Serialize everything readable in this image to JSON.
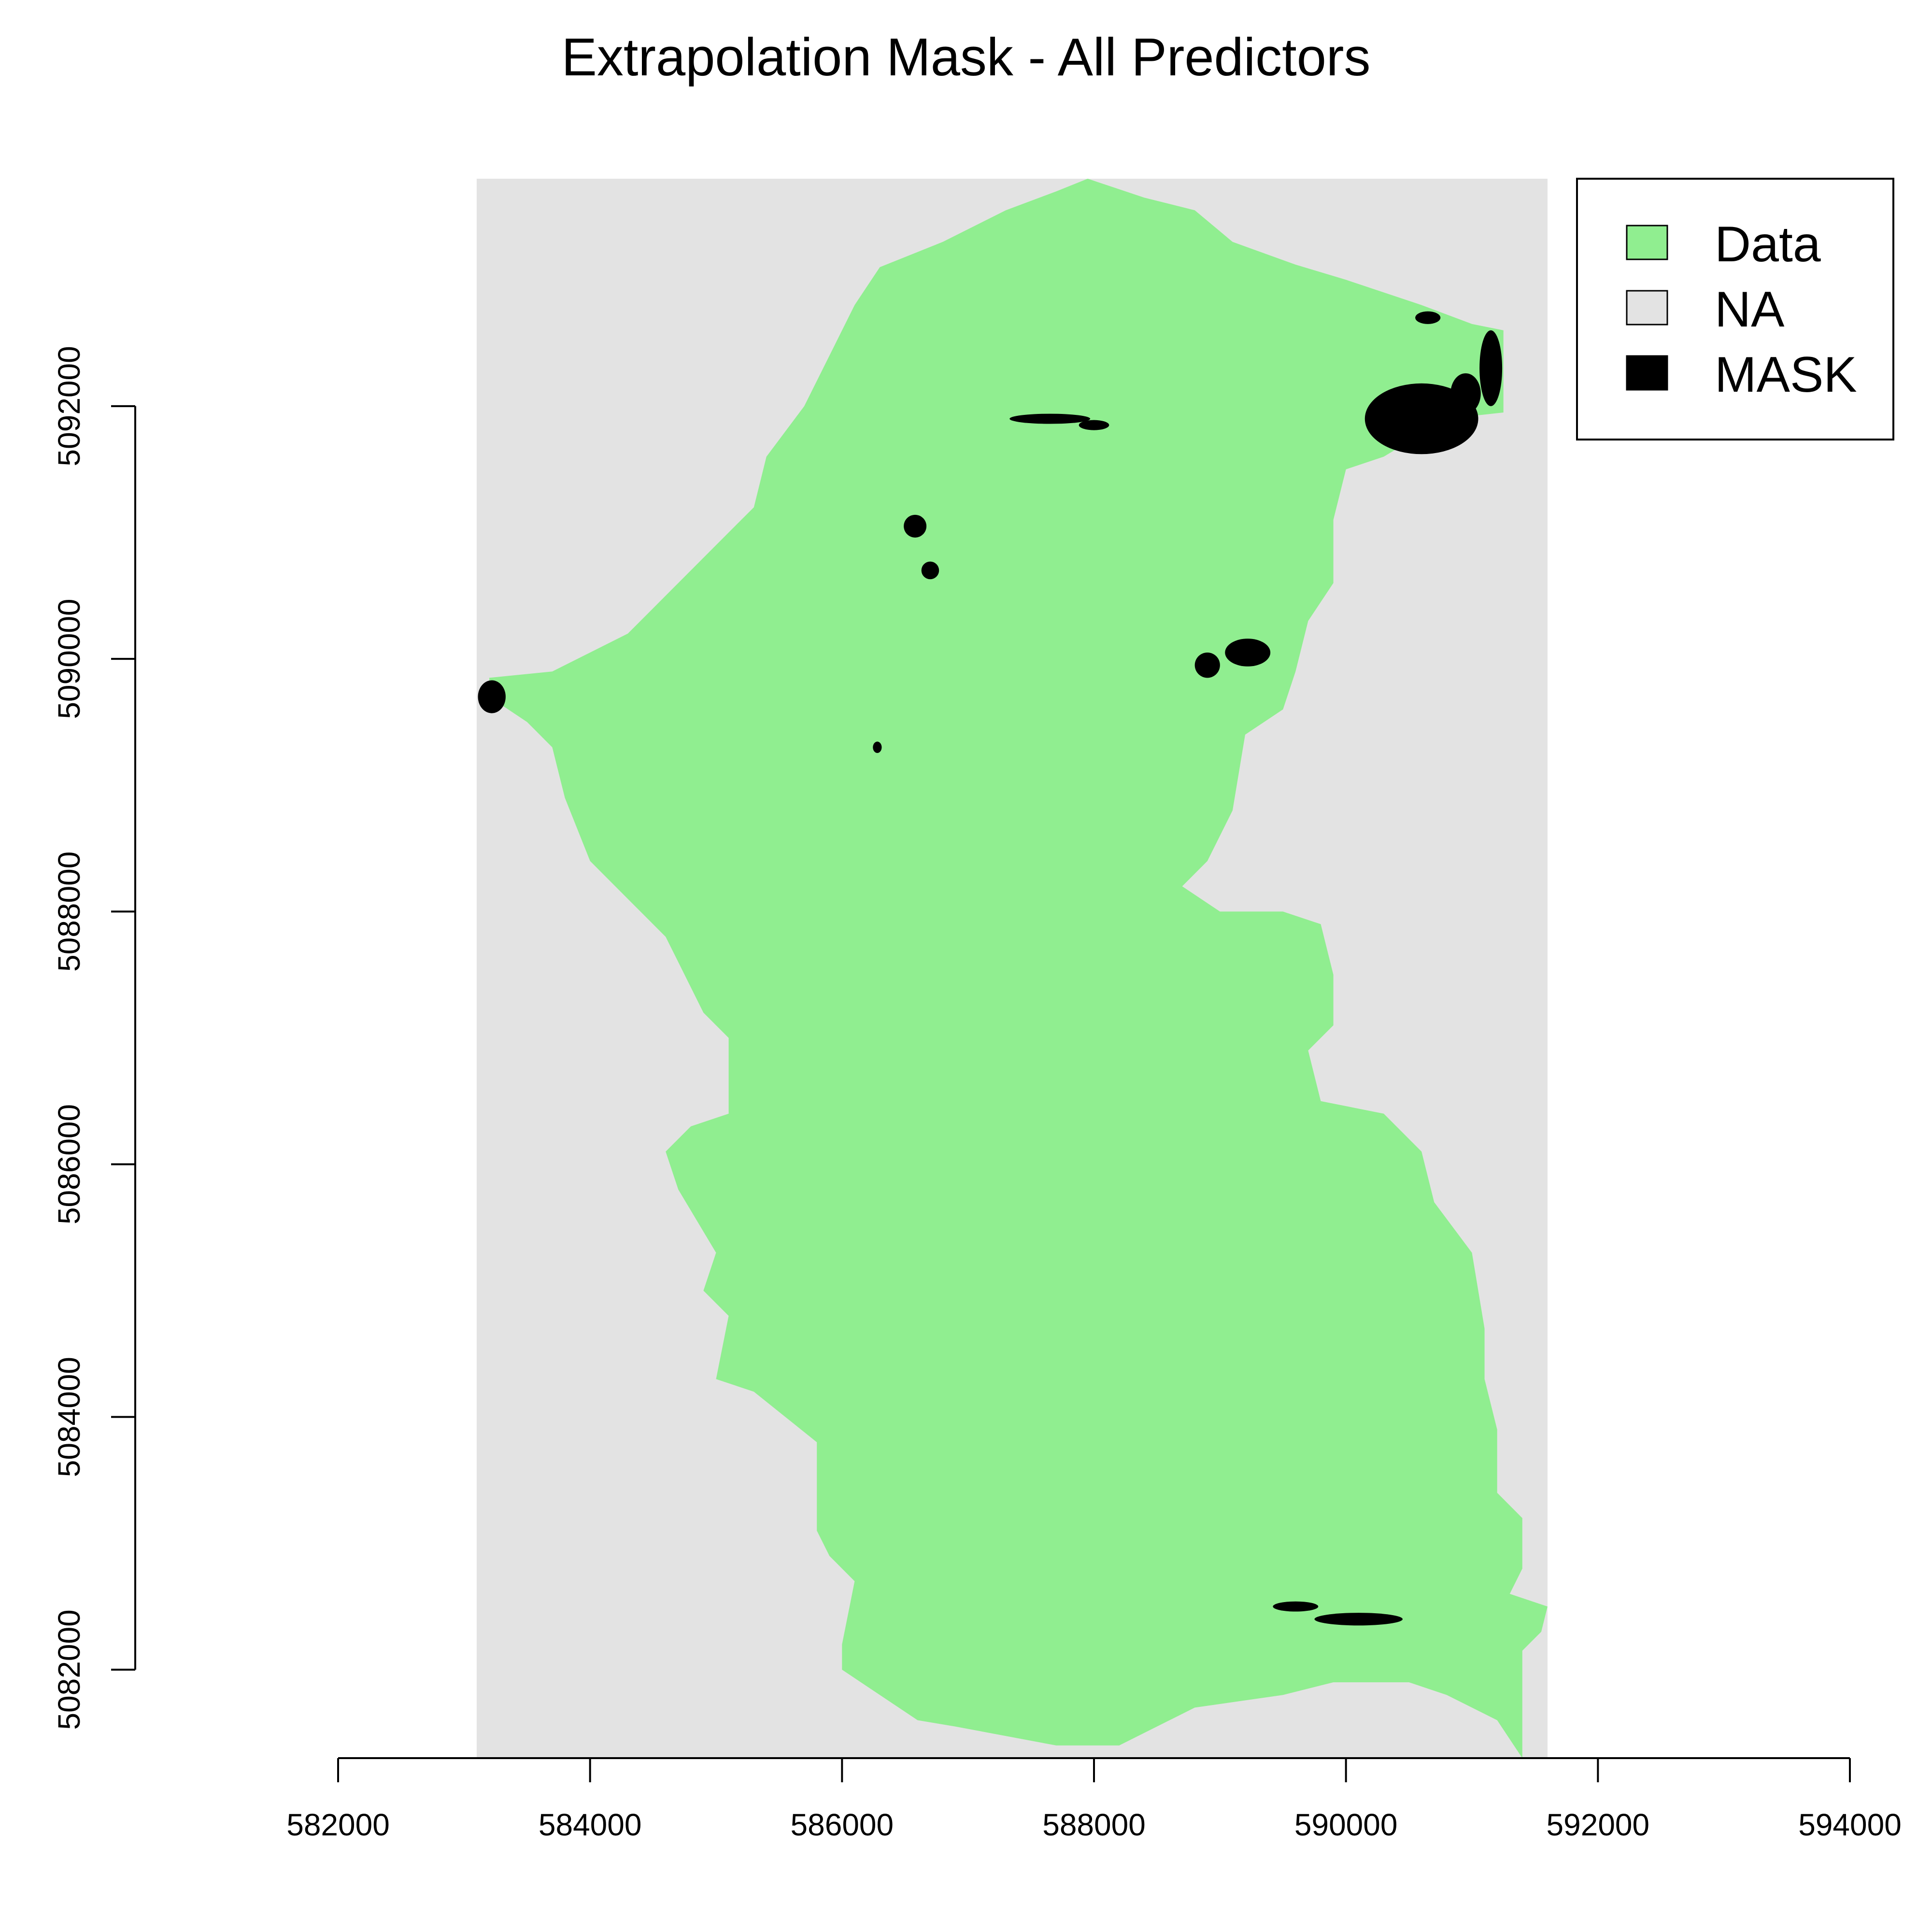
{
  "title": "Extrapolation Mask - All Predictors",
  "colors": {
    "data": "#90ee90",
    "na": "#e3e3e3",
    "mask": "#000000"
  },
  "chart_data": {
    "type": "heatmap",
    "title": "Extrapolation Mask - All Predictors",
    "xlabel": "",
    "ylabel": "",
    "x_ticks": [
      582000,
      584000,
      586000,
      588000,
      590000,
      592000,
      594000
    ],
    "y_ticks": [
      5082000,
      5084000,
      5086000,
      5088000,
      5090000,
      5092000
    ],
    "x_tick_labels": [
      "582000",
      "584000",
      "586000",
      "588000",
      "590000",
      "592000",
      "594000"
    ],
    "y_tick_labels": [
      "5082000",
      "5084000",
      "5086000",
      "5088000",
      "5090000",
      "5092000"
    ],
    "xlim": [
      582000,
      594000
    ],
    "ylim": [
      5081300,
      5093800
    ],
    "raster_extent": {
      "xmin": 583100,
      "xmax": 591600,
      "ymin": 5081300,
      "ymax": 5093800
    },
    "legend": {
      "position": "top-right",
      "entries": [
        {
          "label": "Data",
          "color": "#90ee90"
        },
        {
          "label": "NA",
          "color": "#e3e3e3"
        },
        {
          "label": "MASK",
          "color": "#000000"
        }
      ]
    },
    "watershed_outline": [
      [
        587950,
        5093800
      ],
      [
        588400,
        5093650
      ],
      [
        588800,
        5093550
      ],
      [
        589100,
        5093300
      ],
      [
        589600,
        5093120
      ],
      [
        590000,
        5093000
      ],
      [
        590600,
        5092800
      ],
      [
        591000,
        5092650
      ],
      [
        591250,
        5092600
      ],
      [
        591250,
        5091950
      ],
      [
        590800,
        5091900
      ],
      [
        590300,
        5091600
      ],
      [
        590000,
        5091500
      ],
      [
        589900,
        5091100
      ],
      [
        589900,
        5090600
      ],
      [
        589700,
        5090300
      ],
      [
        589600,
        5089900
      ],
      [
        589500,
        5089600
      ],
      [
        589200,
        5089400
      ],
      [
        589100,
        5088800
      ],
      [
        588900,
        5088400
      ],
      [
        588700,
        5088200
      ],
      [
        589000,
        5088000
      ],
      [
        589500,
        5088000
      ],
      [
        589800,
        5087900
      ],
      [
        589900,
        5087500
      ],
      [
        589900,
        5087100
      ],
      [
        589700,
        5086900
      ],
      [
        589800,
        5086500
      ],
      [
        590300,
        5086400
      ],
      [
        590600,
        5086100
      ],
      [
        590700,
        5085700
      ],
      [
        591000,
        5085300
      ],
      [
        591100,
        5084700
      ],
      [
        591100,
        5084300
      ],
      [
        591200,
        5083900
      ],
      [
        591200,
        5083400
      ],
      [
        591400,
        5083200
      ],
      [
        591400,
        5082800
      ],
      [
        591300,
        5082600
      ],
      [
        591600,
        5082500
      ],
      [
        591550,
        5082300
      ],
      [
        591400,
        5082150
      ],
      [
        591400,
        5081300
      ],
      [
        591200,
        5081600
      ],
      [
        590800,
        5081800
      ],
      [
        590500,
        5081900
      ],
      [
        589900,
        5081900
      ],
      [
        589500,
        5081800
      ],
      [
        588800,
        5081700
      ],
      [
        588200,
        5081400
      ],
      [
        587700,
        5081400
      ],
      [
        586900,
        5081550
      ],
      [
        586600,
        5081600
      ],
      [
        586300,
        5081800
      ],
      [
        586000,
        5082000
      ],
      [
        586000,
        5082200
      ],
      [
        586100,
        5082700
      ],
      [
        585900,
        5082900
      ],
      [
        585800,
        5083100
      ],
      [
        585800,
        5083800
      ],
      [
        585300,
        5084200
      ],
      [
        585000,
        5084300
      ],
      [
        585100,
        5084800
      ],
      [
        584900,
        5085000
      ],
      [
        585000,
        5085300
      ],
      [
        584700,
        5085800
      ],
      [
        584600,
        5086100
      ],
      [
        584800,
        5086300
      ],
      [
        585100,
        5086400
      ],
      [
        585100,
        5087000
      ],
      [
        584900,
        5087200
      ],
      [
        584700,
        5087600
      ],
      [
        584600,
        5087800
      ],
      [
        584300,
        5088100
      ],
      [
        584000,
        5088400
      ],
      [
        583800,
        5088900
      ],
      [
        583700,
        5089300
      ],
      [
        583500,
        5089500
      ],
      [
        583200,
        5089700
      ],
      [
        583200,
        5089850
      ],
      [
        583700,
        5089900
      ],
      [
        584300,
        5090200
      ],
      [
        584600,
        5090500
      ],
      [
        585000,
        5090900
      ],
      [
        585300,
        5091200
      ],
      [
        585400,
        5091600
      ],
      [
        585700,
        5092000
      ],
      [
        585900,
        5092400
      ],
      [
        586100,
        5092800
      ],
      [
        586300,
        5093100
      ],
      [
        586800,
        5093300
      ],
      [
        587300,
        5093550
      ],
      [
        587700,
        5093700
      ]
    ],
    "mask_patches": [
      {
        "x": 583220,
        "y": 5089700,
        "rx": 110,
        "ry": 130
      },
      {
        "x": 590600,
        "y": 5091900,
        "rx": 450,
        "ry": 280
      },
      {
        "x": 591150,
        "y": 5092300,
        "rx": 90,
        "ry": 300
      },
      {
        "x": 590950,
        "y": 5092100,
        "rx": 120,
        "ry": 160
      },
      {
        "x": 590650,
        "y": 5092700,
        "rx": 100,
        "ry": 50
      },
      {
        "x": 586580,
        "y": 5091050,
        "rx": 90,
        "ry": 90
      },
      {
        "x": 586700,
        "y": 5090700,
        "rx": 70,
        "ry": 70
      },
      {
        "x": 589220,
        "y": 5090050,
        "rx": 180,
        "ry": 110
      },
      {
        "x": 588900,
        "y": 5089950,
        "rx": 100,
        "ry": 100
      },
      {
        "x": 587650,
        "y": 5091900,
        "rx": 320,
        "ry": 40
      },
      {
        "x": 588000,
        "y": 5091850,
        "rx": 120,
        "ry": 40
      },
      {
        "x": 590100,
        "y": 5082400,
        "rx": 350,
        "ry": 50
      },
      {
        "x": 589600,
        "y": 5082500,
        "rx": 180,
        "ry": 40
      },
      {
        "x": 586280,
        "y": 5089300,
        "rx": 35,
        "ry": 45
      }
    ]
  }
}
